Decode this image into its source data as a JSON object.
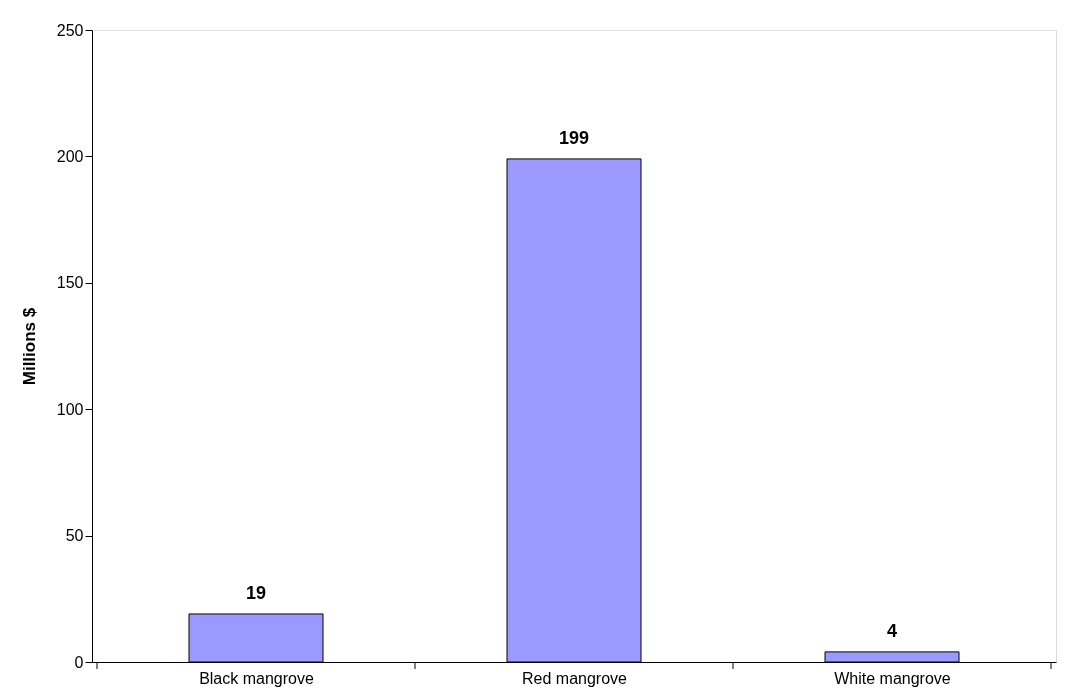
{
  "chart_data": {
    "type": "bar",
    "ylabel": "Millions $",
    "categories": [
      "Black mangrove",
      "Red mangrove",
      "White mangrove"
    ],
    "values": [
      19,
      199,
      4
    ],
    "color": "#9999ff",
    "ylim": [
      0,
      250
    ],
    "yticks": [
      0,
      50,
      100,
      150,
      200,
      250
    ],
    "grid": false,
    "data_labels": true
  }
}
